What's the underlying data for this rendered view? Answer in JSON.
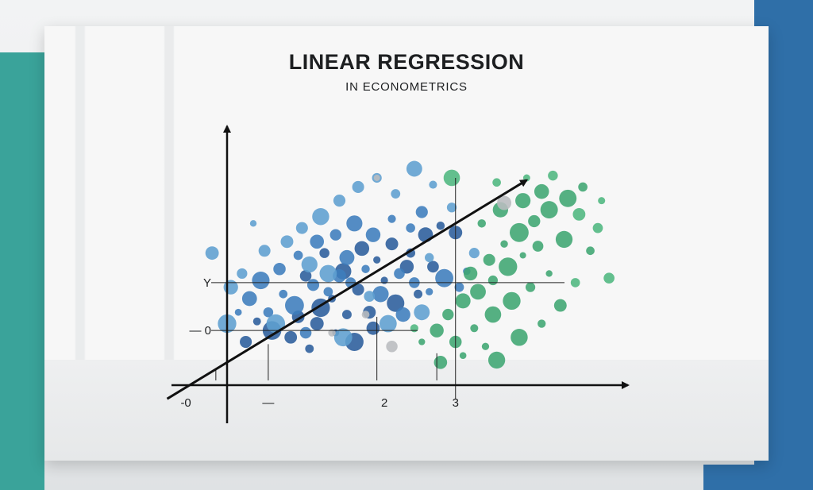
{
  "colors": {
    "teal_accent": "#3aa39a",
    "blue_accent": "#2f6fa8",
    "axis": "#111111",
    "blue_dark": "#2b5d9c",
    "blue_mid": "#3d7dbd",
    "blue_light": "#5e9fd0",
    "green": "#3fa672",
    "green_light": "#4fb780",
    "gray": "#b9bcbf"
  },
  "header": {
    "title": "LINEAR REGRESSION",
    "subtitle": "IN ECONOMETRICS"
  },
  "chart_data": {
    "type": "scatter",
    "title": "LINEAR REGRESSION",
    "subtitle": "IN ECONOMETRICS",
    "xlabel": "",
    "ylabel": "",
    "x_tick_labels": [
      "-0",
      "—",
      "2",
      "3"
    ],
    "y_tick_labels": [
      "Y",
      "— 0"
    ],
    "xlim": [
      -1.4,
      5.3
    ],
    "ylim": [
      -1.3,
      5.7
    ],
    "grid": false,
    "legend": "none",
    "trend_line": {
      "x": [
        -0.8,
        4.0
      ],
      "y": [
        -0.3,
        4.5
      ]
    },
    "series": [
      {
        "color": "#2b5d9c",
        "points": [
          [
            0.95,
            1.5
          ],
          [
            1.2,
            1.35
          ],
          [
            1.4,
            1.9
          ],
          [
            1.6,
            1.55
          ],
          [
            1.75,
            2.1
          ],
          [
            1.9,
            1.6
          ],
          [
            2.1,
            2.3
          ],
          [
            2.25,
            1.8
          ],
          [
            2.4,
            2.6
          ],
          [
            1.05,
            2.4
          ],
          [
            1.3,
            2.9
          ],
          [
            1.55,
            2.5
          ],
          [
            1.8,
            3.0
          ],
          [
            2.0,
            2.75
          ],
          [
            2.2,
            3.1
          ],
          [
            2.45,
            2.9
          ],
          [
            2.65,
            3.3
          ],
          [
            2.85,
            3.5
          ],
          [
            3.05,
            3.35
          ],
          [
            0.85,
            1.05
          ],
          [
            1.1,
            0.8
          ],
          [
            1.45,
            1.15
          ],
          [
            1.7,
            0.95
          ],
          [
            0.6,
            1.2
          ],
          [
            0.4,
            1.4
          ],
          [
            0.25,
            0.95
          ],
          [
            1.25,
            1.7
          ],
          [
            2.55,
            2.0
          ],
          [
            2.75,
            2.6
          ],
          [
            1.95,
            1.25
          ]
        ]
      },
      {
        "color": "#3d7dbd",
        "points": [
          [
            0.3,
            1.9
          ],
          [
            0.55,
            1.6
          ],
          [
            0.75,
            2.0
          ],
          [
            0.9,
            1.75
          ],
          [
            1.15,
            2.2
          ],
          [
            1.35,
            2.05
          ],
          [
            1.5,
            2.4
          ],
          [
            1.65,
            2.25
          ],
          [
            1.85,
            2.55
          ],
          [
            2.05,
            2.0
          ],
          [
            2.3,
            2.45
          ],
          [
            2.5,
            2.25
          ],
          [
            2.7,
            2.05
          ],
          [
            2.9,
            2.35
          ],
          [
            3.1,
            2.15
          ],
          [
            0.45,
            2.3
          ],
          [
            0.7,
            2.55
          ],
          [
            0.95,
            2.85
          ],
          [
            1.2,
            3.15
          ],
          [
            1.45,
            3.3
          ],
          [
            1.7,
            3.55
          ],
          [
            1.95,
            3.3
          ],
          [
            2.2,
            3.65
          ],
          [
            2.45,
            3.45
          ],
          [
            2.6,
            3.8
          ],
          [
            3.2,
            2.5
          ],
          [
            0.15,
            1.6
          ],
          [
            1.05,
            1.15
          ],
          [
            1.6,
            2.8
          ],
          [
            2.35,
            1.55
          ]
        ]
      },
      {
        "color": "#5e9fd0",
        "points": [
          [
            0.0,
            1.35
          ],
          [
            0.2,
            2.45
          ],
          [
            0.5,
            2.95
          ],
          [
            0.8,
            3.15
          ],
          [
            1.0,
            3.45
          ],
          [
            1.25,
            3.7
          ],
          [
            1.5,
            4.05
          ],
          [
            1.75,
            4.35
          ],
          [
            2.0,
            4.55
          ],
          [
            2.25,
            4.2
          ],
          [
            2.5,
            4.75
          ],
          [
            2.75,
            4.4
          ],
          [
            3.0,
            3.9
          ],
          [
            1.1,
            2.65
          ],
          [
            1.35,
            2.45
          ],
          [
            0.65,
            1.35
          ],
          [
            1.55,
            1.05
          ],
          [
            2.15,
            1.35
          ],
          [
            2.6,
            1.6
          ],
          [
            0.05,
            2.15
          ],
          [
            -0.2,
            2.9
          ],
          [
            0.35,
            3.55
          ],
          [
            3.3,
            2.9
          ],
          [
            1.9,
            1.95
          ],
          [
            2.7,
            2.8
          ]
        ]
      },
      {
        "color": "#3fa672",
        "points": [
          [
            2.95,
            1.55
          ],
          [
            3.15,
            1.85
          ],
          [
            3.35,
            2.05
          ],
          [
            3.55,
            2.3
          ],
          [
            3.75,
            2.6
          ],
          [
            3.95,
            2.85
          ],
          [
            4.15,
            3.05
          ],
          [
            3.25,
            2.45
          ],
          [
            3.5,
            2.75
          ],
          [
            3.7,
            3.1
          ],
          [
            3.9,
            3.35
          ],
          [
            4.1,
            3.6
          ],
          [
            4.3,
            3.85
          ],
          [
            2.8,
            1.2
          ],
          [
            3.05,
            0.95
          ],
          [
            3.3,
            1.25
          ],
          [
            3.55,
            1.55
          ],
          [
            3.8,
            1.85
          ],
          [
            4.05,
            2.15
          ],
          [
            4.3,
            2.45
          ],
          [
            3.4,
            3.55
          ],
          [
            3.65,
            3.85
          ],
          [
            3.95,
            4.05
          ],
          [
            4.2,
            4.25
          ],
          [
            4.55,
            4.1
          ],
          [
            4.75,
            4.35
          ],
          [
            4.5,
            3.2
          ],
          [
            4.85,
            2.95
          ],
          [
            3.15,
            0.65
          ],
          [
            3.45,
            0.85
          ],
          [
            2.6,
            0.95
          ],
          [
            2.85,
            0.5
          ],
          [
            3.6,
            0.55
          ],
          [
            3.9,
            1.05
          ],
          [
            4.2,
            1.35
          ],
          [
            4.45,
            1.75
          ]
        ]
      },
      {
        "color": "#4fb780",
        "points": [
          [
            4.0,
            4.55
          ],
          [
            4.35,
            4.6
          ],
          [
            4.7,
            3.75
          ],
          [
            5.0,
            4.05
          ],
          [
            5.1,
            2.35
          ],
          [
            4.65,
            2.25
          ],
          [
            4.95,
            3.45
          ],
          [
            3.0,
            4.55
          ],
          [
            2.5,
            1.25
          ],
          [
            3.6,
            4.45
          ]
        ]
      },
      {
        "color": "#b9bcbf",
        "points": [
          [
            2.0,
            4.55
          ],
          [
            3.7,
            4.0
          ],
          [
            1.4,
            1.15
          ],
          [
            2.2,
            0.85
          ],
          [
            1.85,
            1.55
          ]
        ]
      }
    ]
  }
}
